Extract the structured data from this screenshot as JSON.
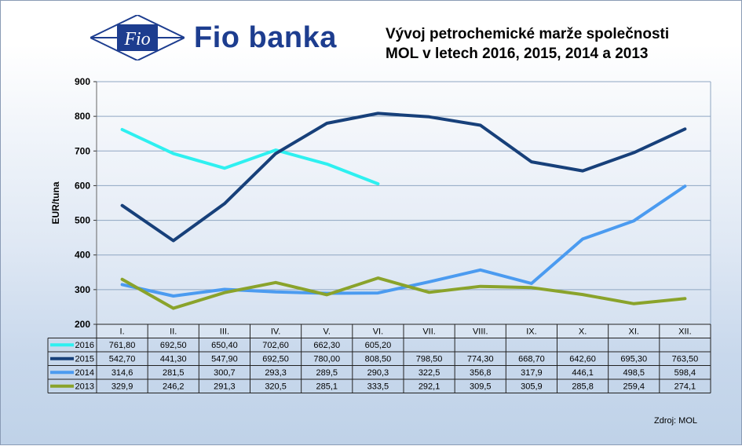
{
  "brand": {
    "name": "Fio banka",
    "logo_text": "Fio"
  },
  "title_line1": "Vývoj petrochemické marže společnosti",
  "title_line2": "MOL v letech 2016, 2015, 2014 a 2013",
  "source": "Zdroj: MOL",
  "chart_data": {
    "type": "line",
    "title": "Vývoj petrochemické marže společnosti MOL v letech 2016, 2015, 2014 a 2013",
    "ylabel": "EUR/tuna",
    "xlabel": "",
    "ylim": [
      200,
      900
    ],
    "yticks": [
      "200",
      "300",
      "400",
      "500",
      "600",
      "700",
      "800",
      "900"
    ],
    "grid": true,
    "legend": "data table below chart",
    "categories": [
      "I.",
      "II.",
      "III.",
      "IV.",
      "V.",
      "VI.",
      "VII.",
      "VIII.",
      "IX.",
      "X.",
      "XI.",
      "XII."
    ],
    "series": [
      {
        "name": "2016",
        "color": "#2ef0f0",
        "values": [
          761.8,
          692.5,
          650.4,
          702.6,
          662.3,
          605.2,
          null,
          null,
          null,
          null,
          null,
          null
        ],
        "labels": [
          "761,80",
          "692,50",
          "650,40",
          "702,60",
          "662,30",
          "605,20",
          "",
          "",
          "",
          "",
          "",
          ""
        ]
      },
      {
        "name": "2015",
        "color": "#17407a",
        "values": [
          542.7,
          441.3,
          547.9,
          692.5,
          780.0,
          808.5,
          798.5,
          774.3,
          668.7,
          642.6,
          695.3,
          763.5
        ],
        "labels": [
          "542,70",
          "441,30",
          "547,90",
          "692,50",
          "780,00",
          "808,50",
          "798,50",
          "774,30",
          "668,70",
          "642,60",
          "695,30",
          "763,50"
        ]
      },
      {
        "name": "2014",
        "color": "#4b9bf0",
        "values": [
          314.6,
          281.5,
          300.7,
          293.3,
          289.5,
          290.3,
          322.5,
          356.8,
          317.9,
          446.1,
          498.5,
          598.4
        ],
        "labels": [
          "314,6",
          "281,5",
          "300,7",
          "293,3",
          "289,5",
          "290,3",
          "322,5",
          "356,8",
          "317,9",
          "446,1",
          "498,5",
          "598,4"
        ]
      },
      {
        "name": "2013",
        "color": "#8aa32b",
        "values": [
          329.9,
          246.2,
          291.3,
          320.5,
          285.1,
          333.5,
          292.1,
          309.5,
          305.9,
          285.8,
          259.4,
          274.1
        ],
        "labels": [
          "329,9",
          "246,2",
          "291,3",
          "320,5",
          "285,1",
          "333,5",
          "292,1",
          "309,5",
          "305,9",
          "285,8",
          "259,4",
          "274,1"
        ]
      }
    ]
  }
}
